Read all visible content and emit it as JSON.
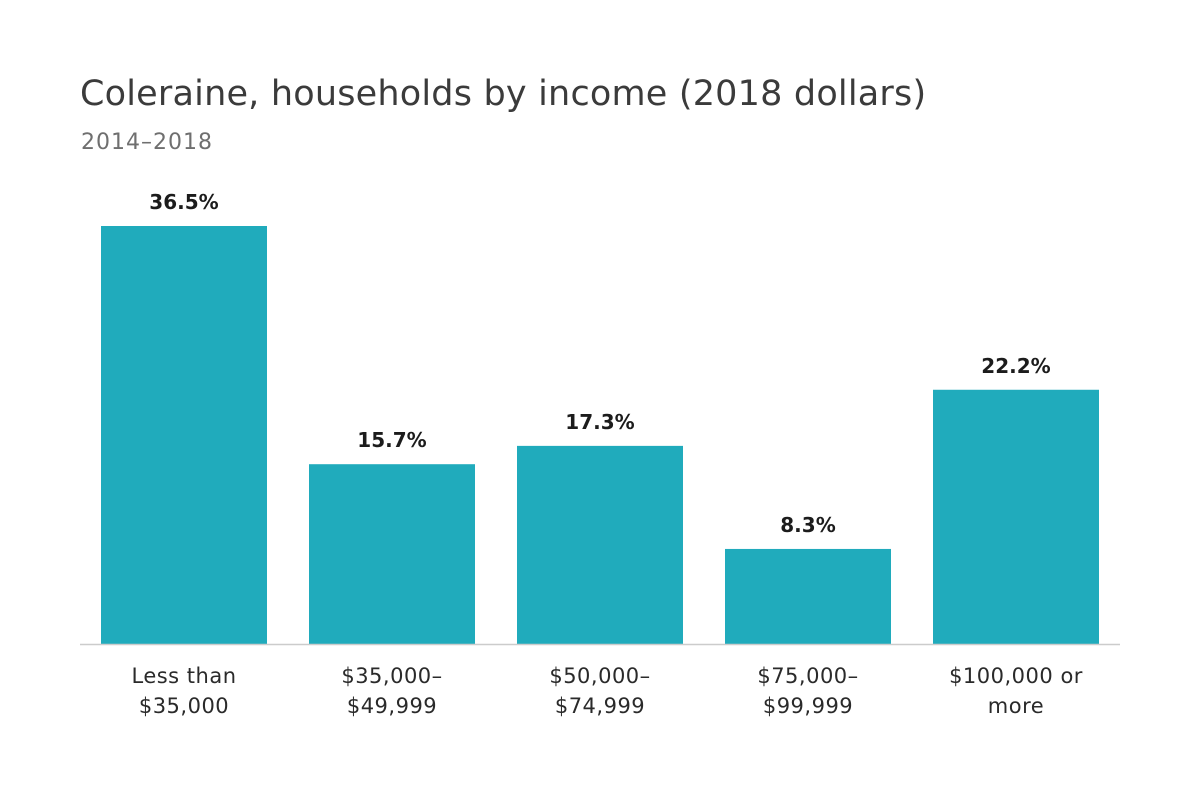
{
  "chart_data": {
    "type": "bar",
    "title": "Coleraine, households by income (2018 dollars)",
    "subtitle": "2014–2018",
    "categories": [
      [
        "Less than",
        "$35,000"
      ],
      [
        "$35,000–",
        "$49,999"
      ],
      [
        "$50,000–",
        "$74,999"
      ],
      [
        "$75,000–",
        "$99,999"
      ],
      [
        "$100,000 or",
        "more"
      ]
    ],
    "values": [
      36.5,
      15.7,
      17.3,
      8.3,
      22.2
    ],
    "value_labels": [
      "36.5%",
      "15.7%",
      "17.3%",
      "8.3%",
      "22.2%"
    ],
    "unit": "%",
    "ylim": [
      0,
      36.5
    ],
    "grid": false,
    "colors": {
      "bar": "#20abbc",
      "baseline": "#cccccc",
      "title": "#3b3b3b",
      "subtitle": "#6f6f6f"
    }
  }
}
